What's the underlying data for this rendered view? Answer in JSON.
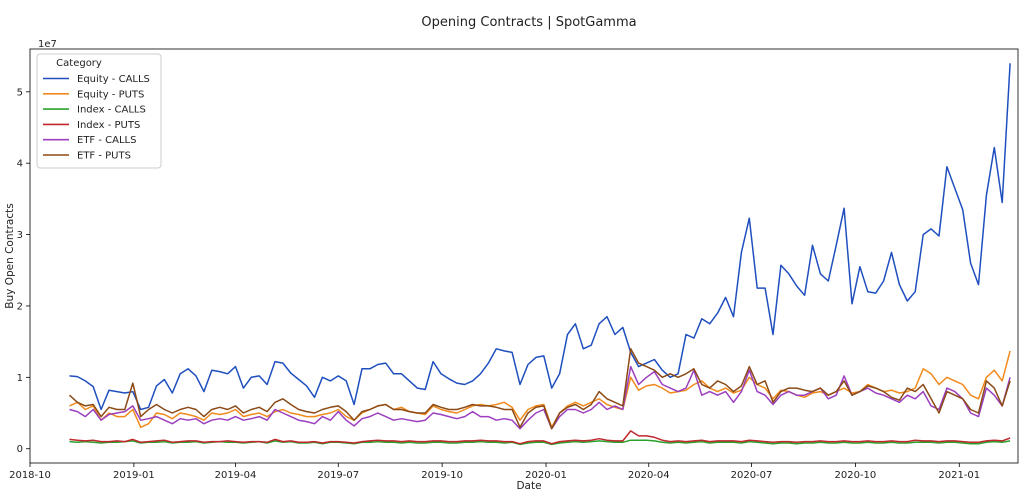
{
  "chart_data": {
    "type": "line",
    "title": "Opening Contracts | SpotGamma",
    "xlabel": "Date",
    "ylabel": "Buy Open Contracts",
    "y_scale_label": "1e7",
    "ylim": [
      -0.2,
      5.6
    ],
    "xlim": [
      "2018-10-01",
      "2021-02-22"
    ],
    "x_ticks": [
      {
        "date": "2018-10-01",
        "label": "2018-10"
      },
      {
        "date": "2019-01-01",
        "label": "2019-01"
      },
      {
        "date": "2019-04-01",
        "label": "2019-04"
      },
      {
        "date": "2019-07-01",
        "label": "2019-07"
      },
      {
        "date": "2019-10-01",
        "label": "2019-10"
      },
      {
        "date": "2020-01-01",
        "label": "2020-01"
      },
      {
        "date": "2020-04-01",
        "label": "2020-04"
      },
      {
        "date": "2020-07-01",
        "label": "2020-07"
      },
      {
        "date": "2020-10-01",
        "label": "2020-10"
      },
      {
        "date": "2021-01-01",
        "label": "2021-01"
      }
    ],
    "y_ticks": [
      0,
      1,
      2,
      3,
      4,
      5
    ],
    "grid": false,
    "legend": {
      "title": "Category",
      "placement": "top-left"
    },
    "x_start": "2018-11-05",
    "x_step_days": 7,
    "series": [
      {
        "name": "Equity - CALLS",
        "color": "#1f4fbf",
        "values": [
          1.02,
          1.01,
          0.95,
          0.87,
          0.55,
          0.82,
          0.8,
          0.78,
          0.8,
          0.55,
          0.58,
          0.88,
          0.97,
          0.78,
          1.05,
          1.12,
          1.02,
          0.8,
          1.1,
          1.08,
          1.05,
          1.15,
          0.85,
          1.0,
          1.02,
          0.9,
          1.22,
          1.2,
          1.06,
          0.97,
          0.88,
          0.72,
          1.0,
          0.95,
          1.02,
          0.95,
          0.62,
          1.12,
          1.12,
          1.18,
          1.2,
          1.05,
          1.05,
          0.95,
          0.85,
          0.83,
          1.22,
          1.05,
          0.98,
          0.92,
          0.9,
          0.95,
          1.05,
          1.2,
          1.4,
          1.37,
          1.35,
          0.9,
          1.18,
          1.28,
          1.3,
          0.85,
          1.05,
          1.6,
          1.75,
          1.4,
          1.45,
          1.75,
          1.85,
          1.6,
          1.7,
          1.35,
          1.15,
          1.2,
          1.25,
          1.1,
          1.0,
          1.05,
          1.6,
          1.55,
          1.82,
          1.75,
          1.9,
          2.12,
          1.85,
          2.75,
          3.23,
          2.25,
          2.25,
          1.6,
          2.57,
          2.45,
          2.28,
          2.15,
          2.85,
          2.45,
          2.35,
          2.85,
          3.37,
          2.03,
          2.55,
          2.2,
          2.18,
          2.35,
          2.75,
          2.3,
          2.07,
          2.2,
          3.0,
          3.08,
          2.98,
          3.95,
          3.65,
          3.35,
          2.6,
          2.3,
          3.55,
          4.22,
          3.45,
          5.4
        ]
      },
      {
        "name": "Equity - PUTS",
        "color": "#f08a1c",
        "values": [
          0.6,
          0.65,
          0.55,
          0.6,
          0.4,
          0.5,
          0.45,
          0.45,
          0.55,
          0.3,
          0.35,
          0.5,
          0.48,
          0.42,
          0.5,
          0.48,
          0.45,
          0.4,
          0.5,
          0.48,
          0.5,
          0.55,
          0.45,
          0.48,
          0.5,
          0.45,
          0.52,
          0.55,
          0.5,
          0.48,
          0.45,
          0.45,
          0.48,
          0.5,
          0.55,
          0.45,
          0.4,
          0.5,
          0.55,
          0.6,
          0.62,
          0.55,
          0.58,
          0.52,
          0.5,
          0.48,
          0.6,
          0.55,
          0.52,
          0.5,
          0.55,
          0.6,
          0.62,
          0.6,
          0.62,
          0.65,
          0.58,
          0.4,
          0.55,
          0.6,
          0.62,
          0.3,
          0.5,
          0.6,
          0.65,
          0.6,
          0.65,
          0.7,
          0.62,
          0.58,
          0.55,
          1.0,
          0.82,
          0.88,
          0.9,
          0.85,
          0.78,
          0.8,
          0.82,
          0.9,
          0.95,
          0.85,
          0.8,
          0.85,
          0.78,
          0.82,
          1.0,
          0.9,
          0.85,
          0.7,
          0.82,
          0.8,
          0.75,
          0.72,
          0.78,
          0.8,
          0.75,
          0.8,
          0.85,
          0.78,
          0.8,
          0.9,
          0.85,
          0.8,
          0.82,
          0.78,
          0.8,
          0.85,
          1.12,
          1.05,
          0.9,
          1.0,
          0.95,
          0.9,
          0.75,
          0.7,
          1.0,
          1.1,
          0.95,
          1.37
        ]
      },
      {
        "name": "Index - CALLS",
        "color": "#2ca02c",
        "values": [
          0.1,
          0.09,
          0.1,
          0.09,
          0.08,
          0.09,
          0.09,
          0.1,
          0.11,
          0.08,
          0.09,
          0.09,
          0.1,
          0.08,
          0.09,
          0.09,
          0.1,
          0.08,
          0.09,
          0.1,
          0.09,
          0.09,
          0.08,
          0.09,
          0.1,
          0.08,
          0.11,
          0.09,
          0.1,
          0.08,
          0.08,
          0.09,
          0.07,
          0.09,
          0.09,
          0.08,
          0.07,
          0.09,
          0.09,
          0.1,
          0.09,
          0.09,
          0.08,
          0.09,
          0.08,
          0.08,
          0.09,
          0.09,
          0.08,
          0.08,
          0.09,
          0.09,
          0.1,
          0.09,
          0.09,
          0.08,
          0.09,
          0.06,
          0.08,
          0.09,
          0.09,
          0.06,
          0.08,
          0.09,
          0.1,
          0.09,
          0.1,
          0.11,
          0.1,
          0.09,
          0.09,
          0.12,
          0.12,
          0.12,
          0.11,
          0.09,
          0.08,
          0.09,
          0.08,
          0.09,
          0.1,
          0.08,
          0.09,
          0.09,
          0.09,
          0.08,
          0.1,
          0.09,
          0.08,
          0.07,
          0.08,
          0.08,
          0.07,
          0.08,
          0.08,
          0.09,
          0.08,
          0.08,
          0.09,
          0.08,
          0.08,
          0.09,
          0.08,
          0.08,
          0.09,
          0.08,
          0.08,
          0.09,
          0.09,
          0.09,
          0.08,
          0.09,
          0.09,
          0.08,
          0.07,
          0.07,
          0.09,
          0.1,
          0.09,
          0.11
        ]
      },
      {
        "name": "Index - PUTS",
        "color": "#c0282e",
        "values": [
          0.13,
          0.12,
          0.11,
          0.12,
          0.1,
          0.1,
          0.11,
          0.1,
          0.13,
          0.09,
          0.1,
          0.11,
          0.12,
          0.09,
          0.1,
          0.11,
          0.11,
          0.09,
          0.1,
          0.1,
          0.11,
          0.1,
          0.09,
          0.1,
          0.1,
          0.09,
          0.13,
          0.1,
          0.11,
          0.09,
          0.09,
          0.1,
          0.08,
          0.1,
          0.1,
          0.09,
          0.08,
          0.1,
          0.11,
          0.12,
          0.11,
          0.11,
          0.1,
          0.11,
          0.1,
          0.1,
          0.11,
          0.11,
          0.1,
          0.1,
          0.11,
          0.11,
          0.12,
          0.11,
          0.11,
          0.1,
          0.1,
          0.07,
          0.1,
          0.11,
          0.11,
          0.07,
          0.1,
          0.11,
          0.12,
          0.11,
          0.12,
          0.14,
          0.12,
          0.11,
          0.11,
          0.25,
          0.18,
          0.18,
          0.16,
          0.12,
          0.1,
          0.11,
          0.1,
          0.11,
          0.12,
          0.1,
          0.11,
          0.11,
          0.11,
          0.1,
          0.12,
          0.11,
          0.1,
          0.09,
          0.1,
          0.1,
          0.09,
          0.1,
          0.1,
          0.11,
          0.1,
          0.1,
          0.11,
          0.1,
          0.1,
          0.11,
          0.1,
          0.1,
          0.11,
          0.1,
          0.1,
          0.12,
          0.11,
          0.11,
          0.1,
          0.11,
          0.11,
          0.1,
          0.09,
          0.09,
          0.11,
          0.12,
          0.11,
          0.15
        ]
      },
      {
        "name": "ETF - CALLS",
        "color": "#9b3fbf",
        "values": [
          0.55,
          0.52,
          0.45,
          0.55,
          0.4,
          0.48,
          0.5,
          0.52,
          0.6,
          0.4,
          0.42,
          0.45,
          0.4,
          0.35,
          0.42,
          0.4,
          0.42,
          0.35,
          0.4,
          0.42,
          0.4,
          0.45,
          0.4,
          0.42,
          0.45,
          0.4,
          0.55,
          0.5,
          0.45,
          0.4,
          0.38,
          0.35,
          0.45,
          0.4,
          0.52,
          0.4,
          0.32,
          0.42,
          0.45,
          0.5,
          0.45,
          0.4,
          0.42,
          0.4,
          0.38,
          0.4,
          0.5,
          0.48,
          0.45,
          0.42,
          0.45,
          0.52,
          0.45,
          0.45,
          0.4,
          0.42,
          0.4,
          0.28,
          0.4,
          0.5,
          0.55,
          0.28,
          0.45,
          0.55,
          0.55,
          0.5,
          0.55,
          0.65,
          0.55,
          0.6,
          0.55,
          1.15,
          0.9,
          1.0,
          1.08,
          0.9,
          0.85,
          0.8,
          0.85,
          1.1,
          0.75,
          0.8,
          0.75,
          0.8,
          0.65,
          0.8,
          1.1,
          0.8,
          0.75,
          0.62,
          0.75,
          0.8,
          0.75,
          0.75,
          0.8,
          0.85,
          0.7,
          0.75,
          1.02,
          0.75,
          0.8,
          0.85,
          0.78,
          0.75,
          0.7,
          0.65,
          0.75,
          0.7,
          0.8,
          0.6,
          0.55,
          0.85,
          0.8,
          0.7,
          0.5,
          0.45,
          0.85,
          0.75,
          0.6,
          1.0
        ]
      },
      {
        "name": "ETF - PUTS",
        "color": "#8b4a16",
        "values": [
          0.75,
          0.65,
          0.6,
          0.62,
          0.45,
          0.58,
          0.55,
          0.55,
          0.92,
          0.45,
          0.55,
          0.62,
          0.55,
          0.5,
          0.55,
          0.58,
          0.55,
          0.45,
          0.55,
          0.58,
          0.55,
          0.6,
          0.5,
          0.55,
          0.58,
          0.52,
          0.65,
          0.7,
          0.62,
          0.55,
          0.52,
          0.5,
          0.55,
          0.58,
          0.6,
          0.52,
          0.4,
          0.52,
          0.55,
          0.6,
          0.62,
          0.55,
          0.55,
          0.52,
          0.5,
          0.5,
          0.62,
          0.58,
          0.55,
          0.55,
          0.58,
          0.62,
          0.6,
          0.6,
          0.58,
          0.55,
          0.55,
          0.3,
          0.5,
          0.58,
          0.6,
          0.28,
          0.5,
          0.58,
          0.62,
          0.55,
          0.62,
          0.8,
          0.7,
          0.65,
          0.6,
          1.4,
          1.2,
          1.15,
          1.1,
          1.0,
          1.05,
          1.0,
          1.05,
          1.12,
          0.9,
          0.85,
          0.95,
          0.9,
          0.8,
          0.88,
          1.15,
          0.9,
          0.95,
          0.65,
          0.8,
          0.85,
          0.85,
          0.82,
          0.8,
          0.85,
          0.75,
          0.8,
          0.95,
          0.75,
          0.8,
          0.88,
          0.85,
          0.8,
          0.72,
          0.68,
          0.85,
          0.8,
          0.9,
          0.7,
          0.5,
          0.8,
          0.75,
          0.7,
          0.55,
          0.5,
          0.95,
          0.85,
          0.6,
          0.95
        ]
      }
    ]
  }
}
